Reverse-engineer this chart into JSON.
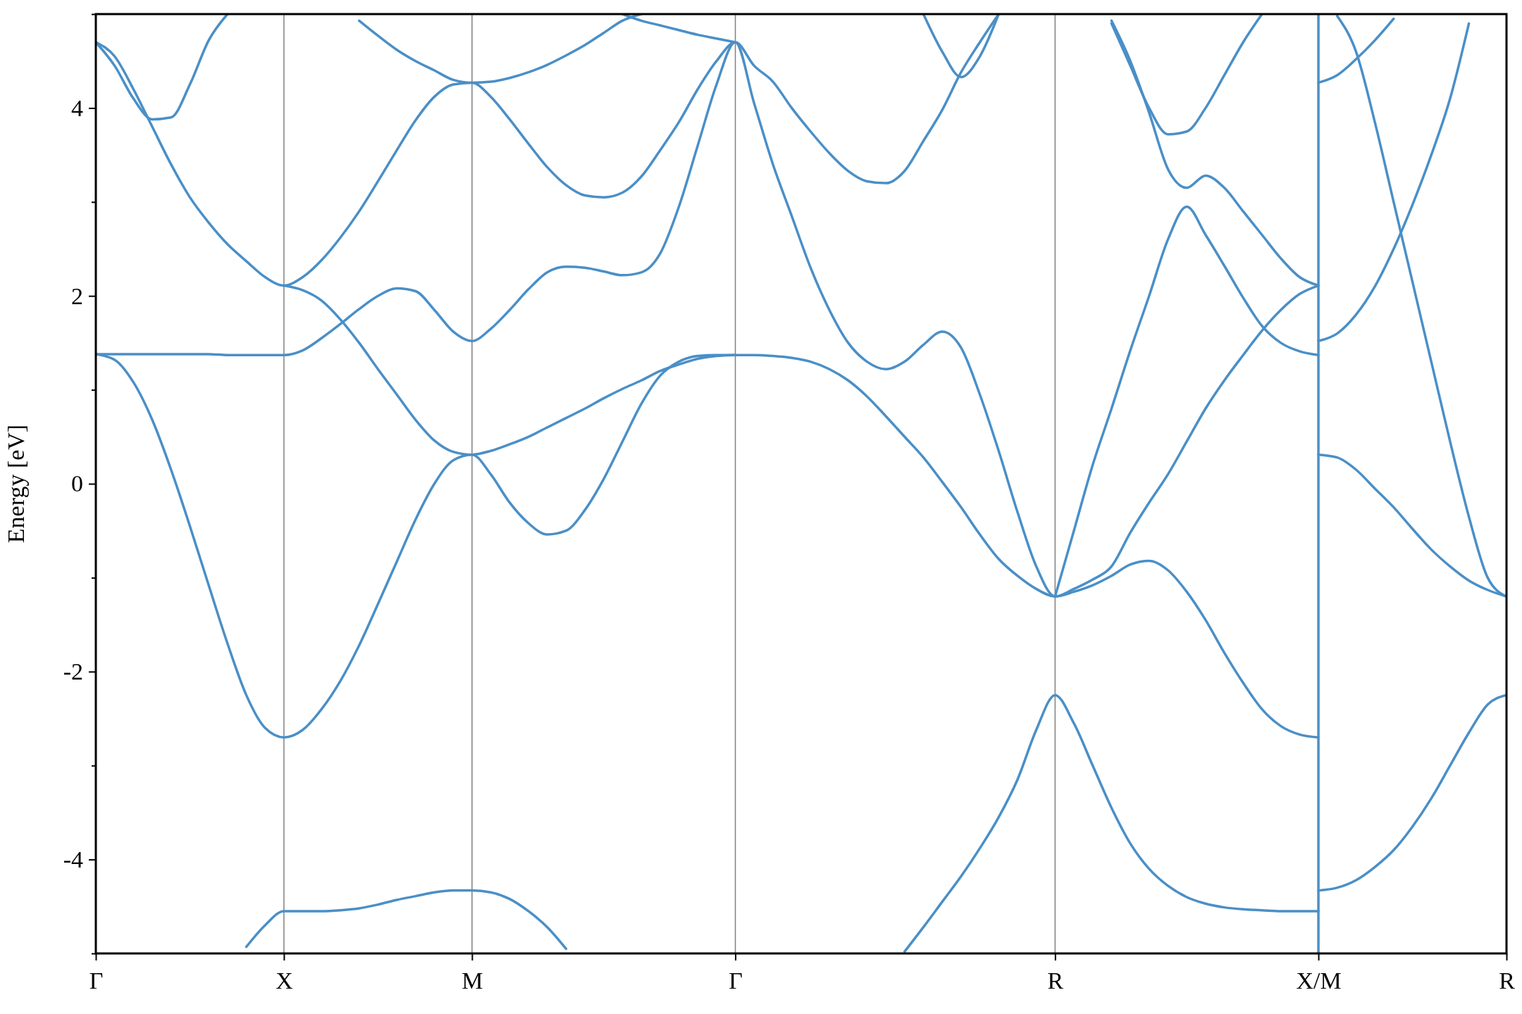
{
  "chart_data": {
    "type": "line",
    "ylabel": "Energy [eV]",
    "ylim": [
      -5,
      5
    ],
    "categories": [
      "Γ",
      null,
      null,
      null,
      null,
      null,
      null,
      null,
      null,
      null,
      "X",
      null,
      null,
      null,
      null,
      null,
      null,
      null,
      null,
      null,
      "M",
      null,
      null,
      null,
      null,
      null,
      null,
      null,
      null,
      null,
      null,
      null,
      null,
      null,
      "Γ",
      null,
      null,
      null,
      null,
      null,
      null,
      null,
      null,
      null,
      null,
      null,
      null,
      null,
      null,
      null,
      null,
      "R",
      null,
      null,
      null,
      null,
      null,
      null,
      null,
      null,
      null,
      null,
      null,
      null,
      null,
      "X/M",
      null,
      null,
      null,
      null,
      null,
      null,
      null,
      null,
      null,
      "R"
    ],
    "yticks": [
      {
        "value": -5,
        "label": null
      },
      -4,
      {
        "value": -3,
        "label": null
      },
      -2,
      {
        "value": -1,
        "label": null
      },
      0,
      {
        "value": 1,
        "label": null
      },
      2,
      {
        "value": 3,
        "label": null
      },
      4,
      {
        "value": 5,
        "label": null
      }
    ],
    "grid": "x",
    "ref_lines": [
      {
        "axis": "x",
        "value": "X/M",
        "color": "#4a8fc7"
      }
    ],
    "series": [
      {
        "color": "#4a8fc7",
        "values": [
          1.38,
          1.38,
          1.38,
          1.38,
          1.38,
          1.38,
          1.38,
          1.37,
          1.37,
          1.37,
          1.37,
          1.42,
          1.55,
          1.7,
          1.86,
          2.0,
          2.08,
          2.05,
          1.85,
          1.62,
          1.52,
          1.65,
          1.85,
          2.07,
          2.25,
          2.31,
          2.3,
          2.26,
          2.22,
          2.25,
          2.45,
          2.95,
          3.6,
          4.25,
          4.7,
          4.05,
          3.4,
          2.85,
          2.3,
          1.85,
          1.5,
          1.3,
          1.22,
          1.3,
          1.48,
          1.62,
          1.45,
          0.95,
          0.35,
          -0.3,
          -0.88,
          -1.2,
          -1.12,
          -1.02,
          -0.88,
          -0.52,
          -0.2,
          0.1,
          0.45,
          0.8,
          1.1,
          1.37,
          1.63,
          1.85,
          2.02,
          2.11,
          null,
          null,
          null,
          null,
          null,
          null,
          null,
          null,
          null,
          null
        ]
      },
      {
        "color": "#4a8fc7",
        "values": [
          1.38,
          1.32,
          1.08,
          0.68,
          0.15,
          -0.45,
          -1.08,
          -1.7,
          -2.25,
          -2.6,
          -2.7,
          -2.62,
          -2.4,
          -2.1,
          -1.72,
          -1.28,
          -0.83,
          -0.38,
          0.0,
          0.25,
          0.31,
          0.1,
          -0.2,
          -0.42,
          -0.54,
          -0.5,
          -0.28,
          0.05,
          0.45,
          0.85,
          1.15,
          1.3,
          1.36,
          1.37,
          1.37,
          1.37,
          1.36,
          1.34,
          1.3,
          1.22,
          1.1,
          0.93,
          0.72,
          0.5,
          0.28,
          0.02,
          -0.25,
          -0.54,
          -0.8,
          -0.98,
          -1.12,
          -1.2,
          -1.15,
          -1.08,
          -0.98,
          -0.86,
          -0.82,
          -0.92,
          -1.15,
          -1.45,
          -1.8,
          -2.12,
          -2.4,
          -2.58,
          -2.67,
          -2.7,
          null,
          null,
          null,
          null,
          null,
          null,
          null,
          null,
          null,
          null
        ]
      },
      {
        "color": "#4a8fc7",
        "values": [
          4.7,
          4.55,
          4.2,
          3.8,
          3.4,
          3.05,
          2.78,
          2.55,
          2.37,
          2.2,
          2.11,
          2.2,
          2.38,
          2.62,
          2.9,
          3.22,
          3.55,
          3.87,
          4.12,
          4.25,
          4.27,
          4.12,
          3.88,
          3.62,
          3.37,
          3.18,
          3.07,
          3.05,
          3.1,
          3.27,
          3.55,
          3.85,
          4.2,
          4.5,
          4.7,
          4.45,
          4.28,
          4.0,
          3.75,
          3.52,
          3.33,
          3.22,
          3.2,
          3.33,
          3.65,
          3.98,
          4.38,
          4.7,
          5.0,
          null,
          null,
          null,
          null,
          null,
          null,
          null,
          null,
          null,
          null,
          null,
          null,
          null,
          null,
          null,
          null,
          null,
          null,
          null,
          null,
          null,
          null,
          null,
          null,
          null,
          null,
          null
        ]
      },
      {
        "color": "#4a8fc7",
        "values": [
          4.7,
          4.45,
          4.1,
          3.88,
          3.9,
          4.25,
          4.72,
          5.0,
          null,
          null,
          null,
          null,
          null,
          null,
          null,
          null,
          null,
          null,
          null,
          null,
          null,
          null,
          null,
          null,
          null,
          null,
          null,
          null,
          null,
          null,
          null,
          null,
          null,
          null,
          null,
          null,
          null,
          null,
          null,
          null,
          null,
          null,
          null,
          null,
          null,
          null,
          null,
          null,
          null,
          null,
          null,
          null,
          null,
          null,
          null,
          null,
          null,
          null,
          null,
          null,
          null,
          null,
          null,
          null,
          null,
          null,
          null,
          null,
          null,
          null,
          null,
          null,
          null,
          null,
          null,
          null
        ]
      },
      {
        "color": "#4a8fc7",
        "values": [
          null,
          null,
          null,
          null,
          null,
          null,
          null,
          null,
          -4.93,
          -4.7,
          -4.55,
          -4.55,
          -4.55,
          -4.54,
          -4.52,
          -4.48,
          -4.43,
          -4.39,
          -4.35,
          -4.33,
          -4.33,
          -4.35,
          -4.42,
          -4.55,
          -4.72,
          -4.95,
          null,
          null,
          null,
          null,
          null,
          null,
          null,
          null,
          null,
          null,
          null,
          null,
          null,
          null,
          null,
          null,
          null,
          null,
          null,
          null,
          null,
          null,
          null,
          null,
          null,
          null,
          null,
          null,
          null,
          null,
          null,
          null,
          null,
          null,
          null,
          null,
          null,
          null,
          null,
          null,
          null,
          null,
          null,
          null,
          null,
          null,
          null,
          null,
          null,
          null
        ]
      },
      {
        "color": "#4a8fc7",
        "values": [
          null,
          null,
          null,
          null,
          null,
          null,
          null,
          null,
          null,
          null,
          2.11,
          2.06,
          1.95,
          1.75,
          1.5,
          1.22,
          0.95,
          0.68,
          0.46,
          0.34,
          0.31,
          0.35,
          0.42,
          0.5,
          0.6,
          0.7,
          0.8,
          0.91,
          1.01,
          1.1,
          1.2,
          1.27,
          1.33,
          1.36,
          1.37,
          null,
          null,
          null,
          null,
          null,
          null,
          null,
          null,
          null,
          null,
          null,
          null,
          null,
          null,
          null,
          null,
          null,
          null,
          null,
          null,
          null,
          null,
          null,
          null,
          null,
          null,
          null,
          null,
          null,
          null,
          null,
          null,
          null,
          null,
          null,
          null,
          null,
          null,
          null,
          null,
          null
        ]
      },
      {
        "color": "#4a8fc7",
        "values": [
          null,
          null,
          null,
          null,
          null,
          null,
          null,
          null,
          null,
          null,
          null,
          null,
          null,
          null,
          4.93,
          4.77,
          4.62,
          4.5,
          4.4,
          4.3,
          4.27,
          4.28,
          4.32,
          4.38,
          4.46,
          4.56,
          4.67,
          4.8,
          4.93,
          5.0,
          null,
          null,
          null,
          null,
          null,
          null,
          null,
          null,
          null,
          null,
          null,
          null,
          null,
          null,
          null,
          null,
          null,
          null,
          null,
          null,
          null,
          null,
          null,
          null,
          null,
          null,
          null,
          null,
          null,
          null,
          null,
          null,
          null,
          null,
          null,
          null,
          null,
          null,
          null,
          null,
          null,
          null,
          null,
          null,
          null,
          null
        ]
      },
      {
        "color": "#4a8fc7",
        "values": [
          null,
          null,
          null,
          null,
          null,
          null,
          null,
          null,
          null,
          null,
          null,
          null,
          null,
          null,
          null,
          null,
          null,
          null,
          null,
          null,
          null,
          null,
          null,
          null,
          null,
          null,
          null,
          null,
          5.0,
          4.93,
          4.88,
          4.83,
          4.78,
          4.74,
          4.7,
          null,
          null,
          null,
          null,
          null,
          null,
          null,
          null,
          null,
          null,
          null,
          null,
          null,
          null,
          null,
          null,
          null,
          null,
          null,
          null,
          null,
          null,
          null,
          null,
          null,
          null,
          null,
          null,
          null,
          null,
          null,
          null,
          null,
          null,
          null,
          null,
          null,
          null,
          null,
          null,
          null
        ]
      },
      {
        "color": "#4a8fc7",
        "values": [
          null,
          null,
          null,
          null,
          null,
          null,
          null,
          null,
          null,
          null,
          null,
          null,
          null,
          null,
          null,
          null,
          null,
          null,
          null,
          null,
          null,
          null,
          null,
          null,
          null,
          null,
          null,
          null,
          null,
          null,
          null,
          null,
          null,
          null,
          null,
          null,
          null,
          null,
          null,
          null,
          null,
          null,
          null,
          null,
          5.0,
          4.6,
          4.33,
          4.55,
          5.0,
          null,
          null,
          null,
          null,
          null,
          null,
          null,
          null,
          null,
          null,
          null,
          null,
          null,
          null,
          null,
          null,
          null,
          null,
          null,
          null,
          null,
          null,
          null,
          null,
          null,
          null,
          null
        ]
      },
      {
        "color": "#4a8fc7",
        "values": [
          null,
          null,
          null,
          null,
          null,
          null,
          null,
          null,
          null,
          null,
          null,
          null,
          null,
          null,
          null,
          null,
          null,
          null,
          null,
          null,
          null,
          null,
          null,
          null,
          null,
          null,
          null,
          null,
          null,
          null,
          null,
          null,
          null,
          null,
          null,
          null,
          null,
          null,
          null,
          null,
          null,
          null,
          null,
          -4.98,
          -4.72,
          -4.45,
          -4.18,
          -3.88,
          -3.55,
          -3.15,
          -2.62,
          -2.25,
          -2.55,
          -3.0,
          -3.45,
          -3.83,
          -4.1,
          -4.28,
          -4.4,
          -4.47,
          -4.51,
          -4.53,
          -4.54,
          -4.55,
          -4.55,
          -4.55,
          null,
          null,
          null,
          null,
          null,
          null,
          null,
          null,
          null,
          null
        ]
      },
      {
        "color": "#4a8fc7",
        "values": [
          null,
          null,
          null,
          null,
          null,
          null,
          null,
          null,
          null,
          null,
          null,
          null,
          null,
          null,
          null,
          null,
          null,
          null,
          null,
          null,
          null,
          null,
          null,
          null,
          null,
          null,
          null,
          null,
          null,
          null,
          null,
          null,
          null,
          null,
          null,
          null,
          null,
          null,
          null,
          null,
          null,
          null,
          null,
          null,
          null,
          null,
          null,
          null,
          null,
          null,
          null,
          -1.2,
          -0.5,
          0.2,
          0.8,
          1.42,
          2.0,
          2.6,
          2.95,
          2.65,
          2.32,
          1.98,
          1.68,
          1.5,
          1.41,
          1.37,
          null,
          null,
          null,
          null,
          null,
          null,
          null,
          null,
          null,
          null
        ]
      },
      {
        "color": "#4a8fc7",
        "values": [
          null,
          null,
          null,
          null,
          null,
          null,
          null,
          null,
          null,
          null,
          null,
          null,
          null,
          null,
          null,
          null,
          null,
          null,
          null,
          null,
          null,
          null,
          null,
          null,
          null,
          null,
          null,
          null,
          null,
          null,
          null,
          null,
          null,
          null,
          null,
          null,
          null,
          null,
          null,
          null,
          null,
          null,
          null,
          null,
          null,
          null,
          null,
          null,
          null,
          null,
          null,
          null,
          null,
          null,
          4.93,
          4.5,
          3.95,
          3.35,
          3.15,
          3.28,
          3.15,
          2.9,
          2.65,
          2.4,
          2.2,
          2.11,
          null,
          null,
          null,
          null,
          null,
          null,
          null,
          null,
          null,
          null
        ]
      },
      {
        "color": "#4a8fc7",
        "values": [
          null,
          null,
          null,
          null,
          null,
          null,
          null,
          null,
          null,
          null,
          null,
          null,
          null,
          null,
          null,
          null,
          null,
          null,
          null,
          null,
          null,
          null,
          null,
          null,
          null,
          null,
          null,
          null,
          null,
          null,
          null,
          null,
          null,
          null,
          null,
          null,
          null,
          null,
          null,
          null,
          null,
          null,
          null,
          null,
          null,
          null,
          null,
          null,
          null,
          null,
          null,
          null,
          null,
          null,
          4.9,
          4.45,
          4.0,
          3.72,
          3.75,
          4.0,
          4.35,
          4.7,
          5.0,
          null,
          null,
          null,
          null,
          null,
          null,
          null,
          null,
          null,
          null,
          null,
          null,
          null
        ]
      },
      {
        "color": "#4a8fc7",
        "values": [
          null,
          null,
          null,
          null,
          null,
          null,
          null,
          null,
          null,
          null,
          null,
          null,
          null,
          null,
          null,
          null,
          null,
          null,
          null,
          null,
          null,
          null,
          null,
          null,
          null,
          null,
          null,
          null,
          null,
          null,
          null,
          null,
          null,
          null,
          null,
          null,
          null,
          null,
          null,
          null,
          null,
          null,
          null,
          null,
          null,
          null,
          null,
          null,
          null,
          null,
          null,
          null,
          null,
          null,
          null,
          null,
          null,
          null,
          null,
          null,
          null,
          null,
          null,
          null,
          null,
          -4.33,
          -4.3,
          -4.22,
          -4.08,
          -3.9,
          -3.65,
          -3.35,
          -3.0,
          -2.65,
          -2.35,
          -2.25
        ]
      },
      {
        "color": "#4a8fc7",
        "values": [
          null,
          null,
          null,
          null,
          null,
          null,
          null,
          null,
          null,
          null,
          null,
          null,
          null,
          null,
          null,
          null,
          null,
          null,
          null,
          null,
          null,
          null,
          null,
          null,
          null,
          null,
          null,
          null,
          null,
          null,
          null,
          null,
          null,
          null,
          null,
          null,
          null,
          null,
          null,
          null,
          null,
          null,
          null,
          null,
          null,
          null,
          null,
          null,
          null,
          null,
          null,
          null,
          null,
          null,
          null,
          null,
          null,
          null,
          null,
          null,
          null,
          null,
          null,
          null,
          null,
          0.31,
          0.28,
          0.15,
          -0.05,
          -0.25,
          -0.48,
          -0.7,
          -0.88,
          -1.03,
          -1.13,
          -1.2
        ]
      },
      {
        "color": "#4a8fc7",
        "values": [
          null,
          null,
          null,
          null,
          null,
          null,
          null,
          null,
          null,
          null,
          null,
          null,
          null,
          null,
          null,
          null,
          null,
          null,
          null,
          null,
          null,
          null,
          null,
          null,
          null,
          null,
          null,
          null,
          null,
          null,
          null,
          null,
          null,
          null,
          null,
          null,
          null,
          null,
          null,
          null,
          null,
          null,
          null,
          null,
          null,
          null,
          null,
          null,
          null,
          null,
          null,
          null,
          null,
          null,
          null,
          null,
          null,
          null,
          null,
          null,
          null,
          null,
          null,
          null,
          null,
          1.52,
          1.6,
          1.8,
          2.1,
          2.5,
          2.97,
          3.5,
          4.1,
          4.9,
          null,
          null
        ]
      },
      {
        "color": "#4a8fc7",
        "values": [
          null,
          null,
          null,
          null,
          null,
          null,
          null,
          null,
          null,
          null,
          null,
          null,
          null,
          null,
          null,
          null,
          null,
          null,
          null,
          null,
          null,
          null,
          null,
          null,
          null,
          null,
          null,
          null,
          null,
          null,
          null,
          null,
          null,
          null,
          null,
          null,
          null,
          null,
          null,
          null,
          null,
          null,
          null,
          null,
          null,
          null,
          null,
          null,
          null,
          null,
          null,
          null,
          null,
          null,
          null,
          null,
          null,
          null,
          null,
          null,
          null,
          null,
          null,
          null,
          null,
          4.27,
          4.35,
          4.52,
          4.72,
          4.95,
          null,
          null,
          null,
          null,
          null,
          null
        ]
      },
      {
        "color": "#4a8fc7",
        "values": [
          null,
          null,
          null,
          null,
          null,
          null,
          null,
          null,
          null,
          null,
          null,
          null,
          null,
          null,
          null,
          null,
          null,
          null,
          null,
          null,
          null,
          null,
          null,
          null,
          null,
          null,
          null,
          null,
          null,
          null,
          null,
          null,
          null,
          null,
          null,
          null,
          null,
          null,
          null,
          null,
          null,
          null,
          null,
          null,
          null,
          null,
          null,
          null,
          null,
          null,
          null,
          null,
          null,
          null,
          null,
          null,
          null,
          null,
          null,
          null,
          null,
          null,
          null,
          null,
          null,
          null,
          4.98,
          4.6,
          3.85,
          3.0,
          2.15,
          1.3,
          0.45,
          -0.35,
          -1.0,
          -1.2
        ]
      }
    ]
  }
}
